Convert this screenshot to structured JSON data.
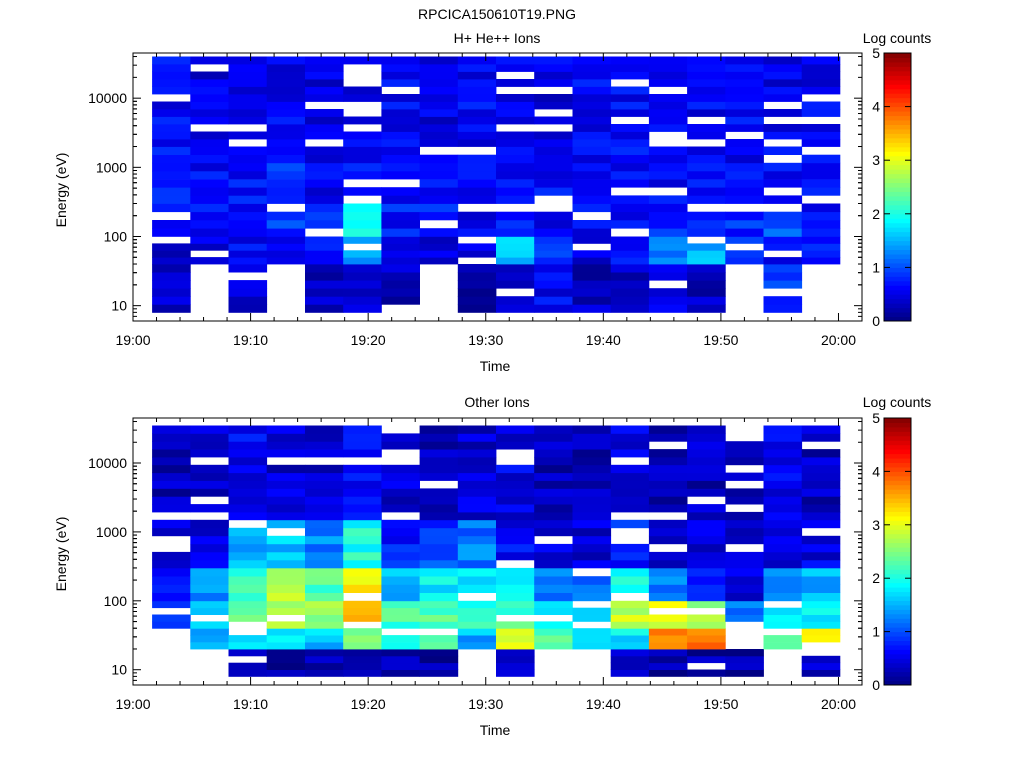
{
  "figure_title": "RPCICA150610T19.PNG",
  "chart_data": [
    {
      "type": "heatmap",
      "title": "H+ He++ Ions",
      "xlabel": "Time",
      "ylabel": "Energy (eV)",
      "x_ticks": [
        "19:00",
        "19:10",
        "19:20",
        "19:30",
        "19:40",
        "19:50",
        "20:00"
      ],
      "xlim": [
        "19:00",
        "20:02"
      ],
      "y_scale": "log",
      "ylim": [
        6,
        45000
      ],
      "y_ticks": [
        10,
        100,
        1000,
        10000
      ],
      "y_tick_labels": [
        "10",
        "100",
        "1000",
        "10000"
      ],
      "colorbar": {
        "label": "Log counts",
        "range": [
          0,
          5
        ],
        "ticks": [
          "0",
          "1",
          "2",
          "3",
          "4",
          "5"
        ],
        "colormap": "jet"
      },
      "time_bins": [
        "19:03:15",
        "19:06:30",
        "19:09:45",
        "19:13:00",
        "19:16:15",
        "19:19:30",
        "19:22:45",
        "19:26:00",
        "19:29:15",
        "19:32:30",
        "19:35:45",
        "19:39:00",
        "19:42:15",
        "19:45:30",
        "19:48:45",
        "19:52:00",
        "19:55:15",
        "19:58:30"
      ],
      "energy_bands": [
        {
          "energy": [
            8,
            40
          ],
          "values": [
            0.3,
            null,
            0.4,
            null,
            0.3,
            0.3,
            0.3,
            null,
            0.3,
            0.3,
            0.6,
            0.3,
            0.4,
            0.5,
            0.3,
            null,
            0.8,
            null
          ]
        },
        {
          "energy": [
            40,
            100
          ],
          "values": [
            0.4,
            0.5,
            0.6,
            0.6,
            0.7,
            1.4,
            0.5,
            0.4,
            0.4,
            1.5,
            0.8,
            0.5,
            0.7,
            1.2,
            1.5,
            0.9,
            0.6,
            0.8
          ]
        },
        {
          "energy": [
            100,
            300
          ],
          "values": [
            0.6,
            0.6,
            0.6,
            0.9,
            0.7,
            1.8,
            0.7,
            0.7,
            0.6,
            0.8,
            0.6,
            0.6,
            0.7,
            0.8,
            0.9,
            0.8,
            1.0,
            0.7
          ]
        },
        {
          "energy": [
            300,
            2000
          ],
          "values": [
            0.7,
            0.6,
            0.7,
            0.8,
            0.6,
            0.7,
            0.7,
            0.6,
            0.6,
            0.6,
            0.6,
            0.6,
            0.6,
            0.6,
            0.6,
            0.6,
            0.6,
            0.6
          ]
        },
        {
          "energy": [
            2000,
            40000
          ],
          "values": [
            0.6,
            0.5,
            0.6,
            0.6,
            0.5,
            0.6,
            0.6,
            0.5,
            0.6,
            0.6,
            0.5,
            0.6,
            0.6,
            0.5,
            0.6,
            0.6,
            0.5,
            0.6
          ]
        }
      ]
    },
    {
      "type": "heatmap",
      "title": "Other Ions",
      "xlabel": "Time",
      "ylabel": "Energy (eV)",
      "x_ticks": [
        "19:00",
        "19:10",
        "19:20",
        "19:30",
        "19:40",
        "19:50",
        "20:00"
      ],
      "xlim": [
        "19:00",
        "20:02"
      ],
      "y_scale": "log",
      "ylim": [
        6,
        45000
      ],
      "y_ticks": [
        10,
        100,
        1000,
        10000
      ],
      "y_tick_labels": [
        "10",
        "100",
        "1000",
        "10000"
      ],
      "colorbar": {
        "label": "Log counts",
        "range": [
          0,
          5
        ],
        "ticks": [
          "0",
          "1",
          "2",
          "3",
          "4",
          "5"
        ],
        "colormap": "jet"
      },
      "time_bins": [
        "19:03:15",
        "19:06:30",
        "19:09:45",
        "19:13:00",
        "19:16:15",
        "19:19:30",
        "19:22:45",
        "19:26:00",
        "19:29:15",
        "19:32:30",
        "19:35:45",
        "19:39:00",
        "19:42:15",
        "19:45:30",
        "19:48:45",
        "19:52:00",
        "19:55:15",
        "19:58:30"
      ],
      "energy_bands": [
        {
          "energy": [
            8,
            20
          ],
          "values": [
            null,
            null,
            0.2,
            0.2,
            0.2,
            0.2,
            0.3,
            0.2,
            null,
            0.4,
            null,
            null,
            0.3,
            0.2,
            0.2,
            0.2,
            null,
            0.3
          ]
        },
        {
          "energy": [
            20,
            40
          ],
          "values": [
            1.4,
            1.6,
            1.6,
            1.8,
            1.6,
            2.6,
            1.9,
            2.2,
            1.5,
            3.1,
            2.2,
            1.6,
            1.8,
            3.8,
            3.8,
            3.1,
            2.5,
            3.0
          ]
        },
        {
          "energy": [
            40,
            100
          ],
          "values": [
            1.1,
            1.8,
            2.3,
            2.8,
            2.6,
            3.3,
            2.2,
            2.3,
            2.0,
            2.2,
            1.8,
            1.7,
            2.8,
            2.9,
            2.7,
            1.1,
            1.7,
            1.9
          ]
        },
        {
          "energy": [
            100,
            300
          ],
          "values": [
            0.6,
            1.4,
            2.1,
            2.8,
            2.3,
            3.1,
            1.6,
            1.8,
            1.7,
            1.8,
            1.2,
            1.1,
            2.0,
            1.2,
            0.9,
            0.5,
            1.3,
            1.5
          ]
        },
        {
          "energy": [
            300,
            1500
          ],
          "values": [
            0.4,
            0.5,
            1.5,
            1.6,
            1.3,
            2.0,
            0.7,
            0.9,
            1.2,
            0.6,
            0.5,
            0.4,
            0.8,
            0.5,
            0.4,
            0.3,
            0.5,
            0.5
          ]
        },
        {
          "energy": [
            1500,
            35000
          ],
          "values": [
            0.3,
            0.4,
            0.6,
            0.4,
            0.4,
            0.6,
            0.4,
            0.3,
            0.4,
            0.5,
            0.3,
            0.3,
            0.5,
            0.3,
            0.3,
            0.3,
            0.6,
            0.3
          ]
        }
      ]
    }
  ]
}
